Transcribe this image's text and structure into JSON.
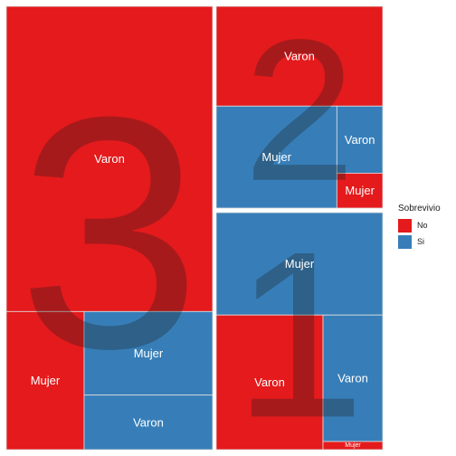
{
  "chart_data": {
    "type": "treemap",
    "title": "",
    "legend": {
      "title": "Sobrevivio",
      "position": "right",
      "entries": [
        {
          "label": "No",
          "color": "#E41A1C"
        },
        {
          "label": "Si",
          "color": "#377EB8"
        }
      ]
    },
    "groups": [
      {
        "label": "3",
        "tiles": [
          {
            "sex": "Varon",
            "survived": "No",
            "value": 422
          },
          {
            "sex": "Mujer",
            "survived": "No",
            "value": 72
          },
          {
            "sex": "Mujer",
            "survived": "Si",
            "value": 72
          },
          {
            "sex": "Varon",
            "survived": "Si",
            "value": 47
          }
        ]
      },
      {
        "label": "2",
        "tiles": [
          {
            "sex": "Varon",
            "survived": "No",
            "value": 135
          },
          {
            "sex": "Mujer",
            "survived": "Si",
            "value": 100
          },
          {
            "sex": "Varon",
            "survived": "Si",
            "value": 25
          },
          {
            "sex": "Mujer",
            "survived": "No",
            "value": 13
          }
        ]
      },
      {
        "label": "1",
        "tiles": [
          {
            "sex": "Varon",
            "survived": "No",
            "value": 118
          },
          {
            "sex": "Mujer",
            "survived": "Si",
            "value": 140
          },
          {
            "sex": "Varon",
            "survived": "Si",
            "value": 62
          },
          {
            "sex": "Mujer",
            "survived": "No",
            "value": 4
          }
        ]
      }
    ]
  }
}
